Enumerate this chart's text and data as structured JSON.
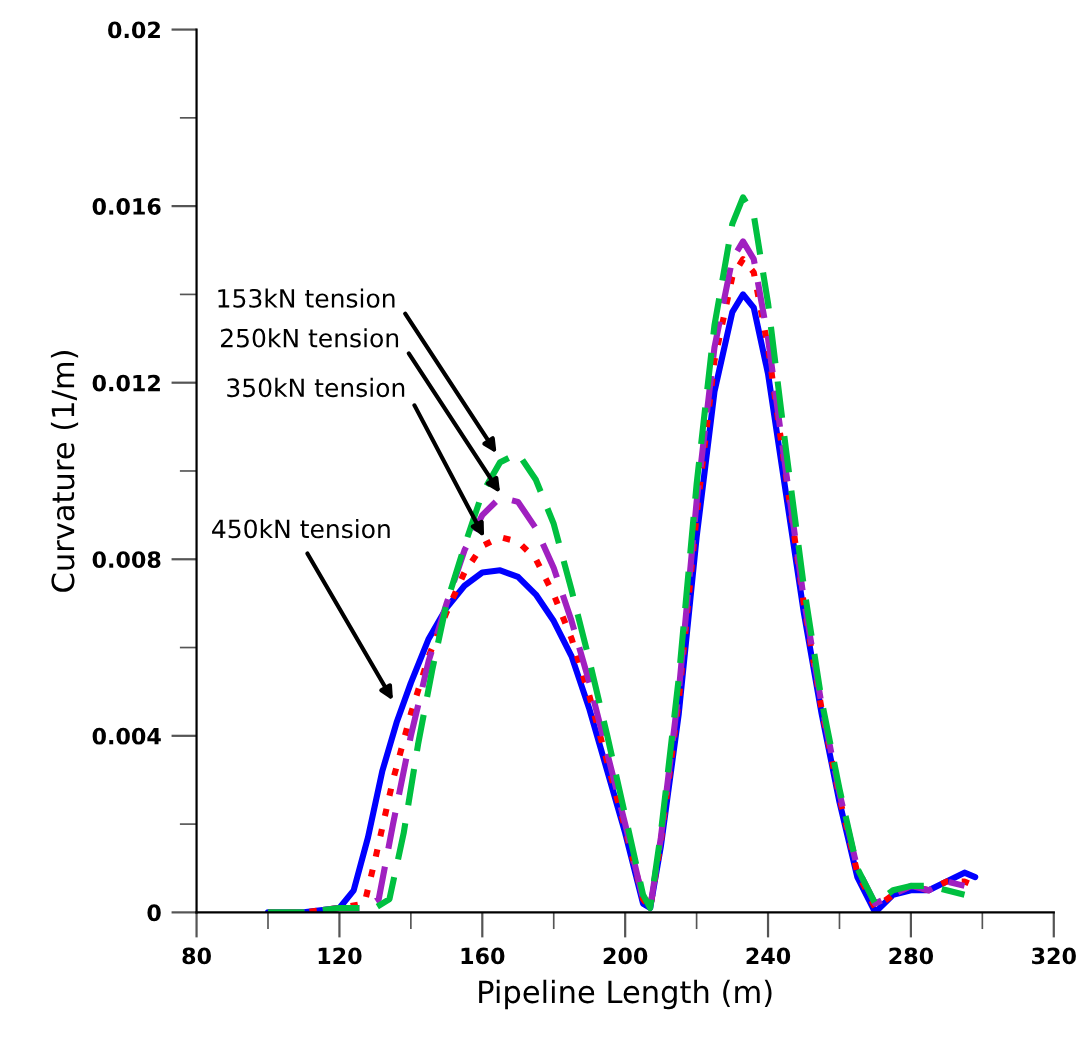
{
  "chart_data": {
    "type": "line",
    "xlabel": "Pipeline Length (m)",
    "ylabel": "Curvature (1/m)",
    "xlim": [
      80,
      320
    ],
    "ylim": [
      0,
      0.02
    ],
    "xticks": [
      80,
      120,
      160,
      200,
      240,
      280,
      320
    ],
    "yticks": [
      0,
      0.004,
      0.008,
      0.012,
      0.016,
      0.02
    ],
    "grid": false,
    "legend": false,
    "marker": "none",
    "series": [
      {
        "color": "#0000ff",
        "line_style": "solid",
        "x": [
          100,
          110,
          120,
          124,
          128,
          132,
          136,
          140,
          145,
          150,
          155,
          160,
          165,
          170,
          175,
          180,
          185,
          190,
          195,
          200,
          205,
          207,
          210,
          215,
          220,
          225,
          230,
          233,
          236,
          240,
          245,
          250,
          255,
          260,
          265,
          270,
          275,
          280,
          285,
          290,
          295,
          298
        ],
        "values": [
          0,
          0,
          0.0001,
          0.0005,
          0.0017,
          0.0032,
          0.0043,
          0.0052,
          0.0062,
          0.0069,
          0.0074,
          0.0077,
          0.00775,
          0.0076,
          0.0072,
          0.0066,
          0.0058,
          0.0046,
          0.0032,
          0.0018,
          0.0002,
          0.0001,
          0.0015,
          0.0045,
          0.0085,
          0.0118,
          0.0136,
          0.014,
          0.0137,
          0.0122,
          0.0095,
          0.0068,
          0.0045,
          0.0025,
          0.0008,
          0,
          0.0004,
          0.0005,
          0.0005,
          0.0007,
          0.0009,
          0.0008
        ]
      },
      {
        "color": "#ff0000",
        "line_style": "dotted",
        "x": [
          100,
          110,
          120,
          127,
          130,
          135,
          140,
          145,
          150,
          155,
          160,
          165,
          170,
          175,
          180,
          185,
          190,
          195,
          200,
          205,
          207,
          210,
          215,
          220,
          225,
          230,
          233,
          236,
          240,
          245,
          250,
          255,
          260,
          265,
          270,
          275,
          280,
          285,
          290,
          295,
          298
        ],
        "values": [
          0,
          0,
          0.0001,
          0.0002,
          0.0012,
          0.003,
          0.0045,
          0.0058,
          0.0068,
          0.0077,
          0.0083,
          0.0085,
          0.0084,
          0.008,
          0.0072,
          0.0062,
          0.0049,
          0.0034,
          0.0019,
          0.0003,
          0.0001,
          0.0016,
          0.0048,
          0.009,
          0.0125,
          0.0144,
          0.0148,
          0.0145,
          0.0128,
          0.0099,
          0.007,
          0.0046,
          0.0026,
          0.0009,
          0.0001,
          0.0004,
          0.0006,
          0.0005,
          0.0007,
          0.0007,
          0.0006
        ]
      },
      {
        "color": "#a020c0",
        "line_style": "dashed",
        "x": [
          100,
          110,
          120,
          127,
          131,
          135,
          140,
          145,
          150,
          155,
          160,
          165,
          170,
          175,
          180,
          185,
          190,
          195,
          200,
          205,
          207,
          210,
          215,
          220,
          225,
          230,
          233,
          236,
          240,
          245,
          250,
          255,
          260,
          265,
          270,
          275,
          280,
          285,
          290,
          295
        ],
        "values": [
          0,
          0,
          0.0001,
          0.0001,
          0.0003,
          0.002,
          0.004,
          0.0057,
          0.007,
          0.0082,
          0.009,
          0.0094,
          0.0093,
          0.0087,
          0.0078,
          0.0066,
          0.0052,
          0.0036,
          0.002,
          0.0003,
          0.0001,
          0.0017,
          0.005,
          0.0093,
          0.0128,
          0.0148,
          0.0152,
          0.0148,
          0.013,
          0.01,
          0.0071,
          0.0047,
          0.0027,
          0.001,
          0.0002,
          0.0004,
          0.0006,
          0.0005,
          0.0007,
          0.0006
        ]
      },
      {
        "color": "#00c040",
        "line_style": "dashed",
        "x": [
          100,
          110,
          120,
          130,
          134,
          138,
          142,
          146,
          150,
          155,
          160,
          165,
          170,
          175,
          180,
          185,
          190,
          195,
          200,
          205,
          207,
          210,
          215,
          220,
          225,
          230,
          233,
          236,
          240,
          245,
          250,
          255,
          260,
          265,
          270,
          275,
          280,
          285,
          290,
          295
        ],
        "values": [
          0,
          0,
          0.0001,
          0.0001,
          0.0003,
          0.0018,
          0.0038,
          0.0055,
          0.007,
          0.0083,
          0.0095,
          0.0102,
          0.0104,
          0.0098,
          0.0088,
          0.0073,
          0.0057,
          0.004,
          0.0022,
          0.0004,
          0.0001,
          0.0018,
          0.0053,
          0.0097,
          0.0133,
          0.0156,
          0.0162,
          0.0158,
          0.0138,
          0.0105,
          0.0074,
          0.0048,
          0.0028,
          0.001,
          0.0002,
          0.0005,
          0.0006,
          0.0006,
          0.0005,
          0.0004
        ]
      }
    ],
    "annotations": [
      {
        "text": "153kN tension",
        "x": 164,
        "y": 0.0104
      },
      {
        "text": "250kN tension",
        "x": 165,
        "y": 0.0095
      },
      {
        "text": "350kN tension",
        "x": 160.5,
        "y": 0.0085
      },
      {
        "text": "450kN tension",
        "x": 135,
        "y": 0.0048
      }
    ]
  }
}
